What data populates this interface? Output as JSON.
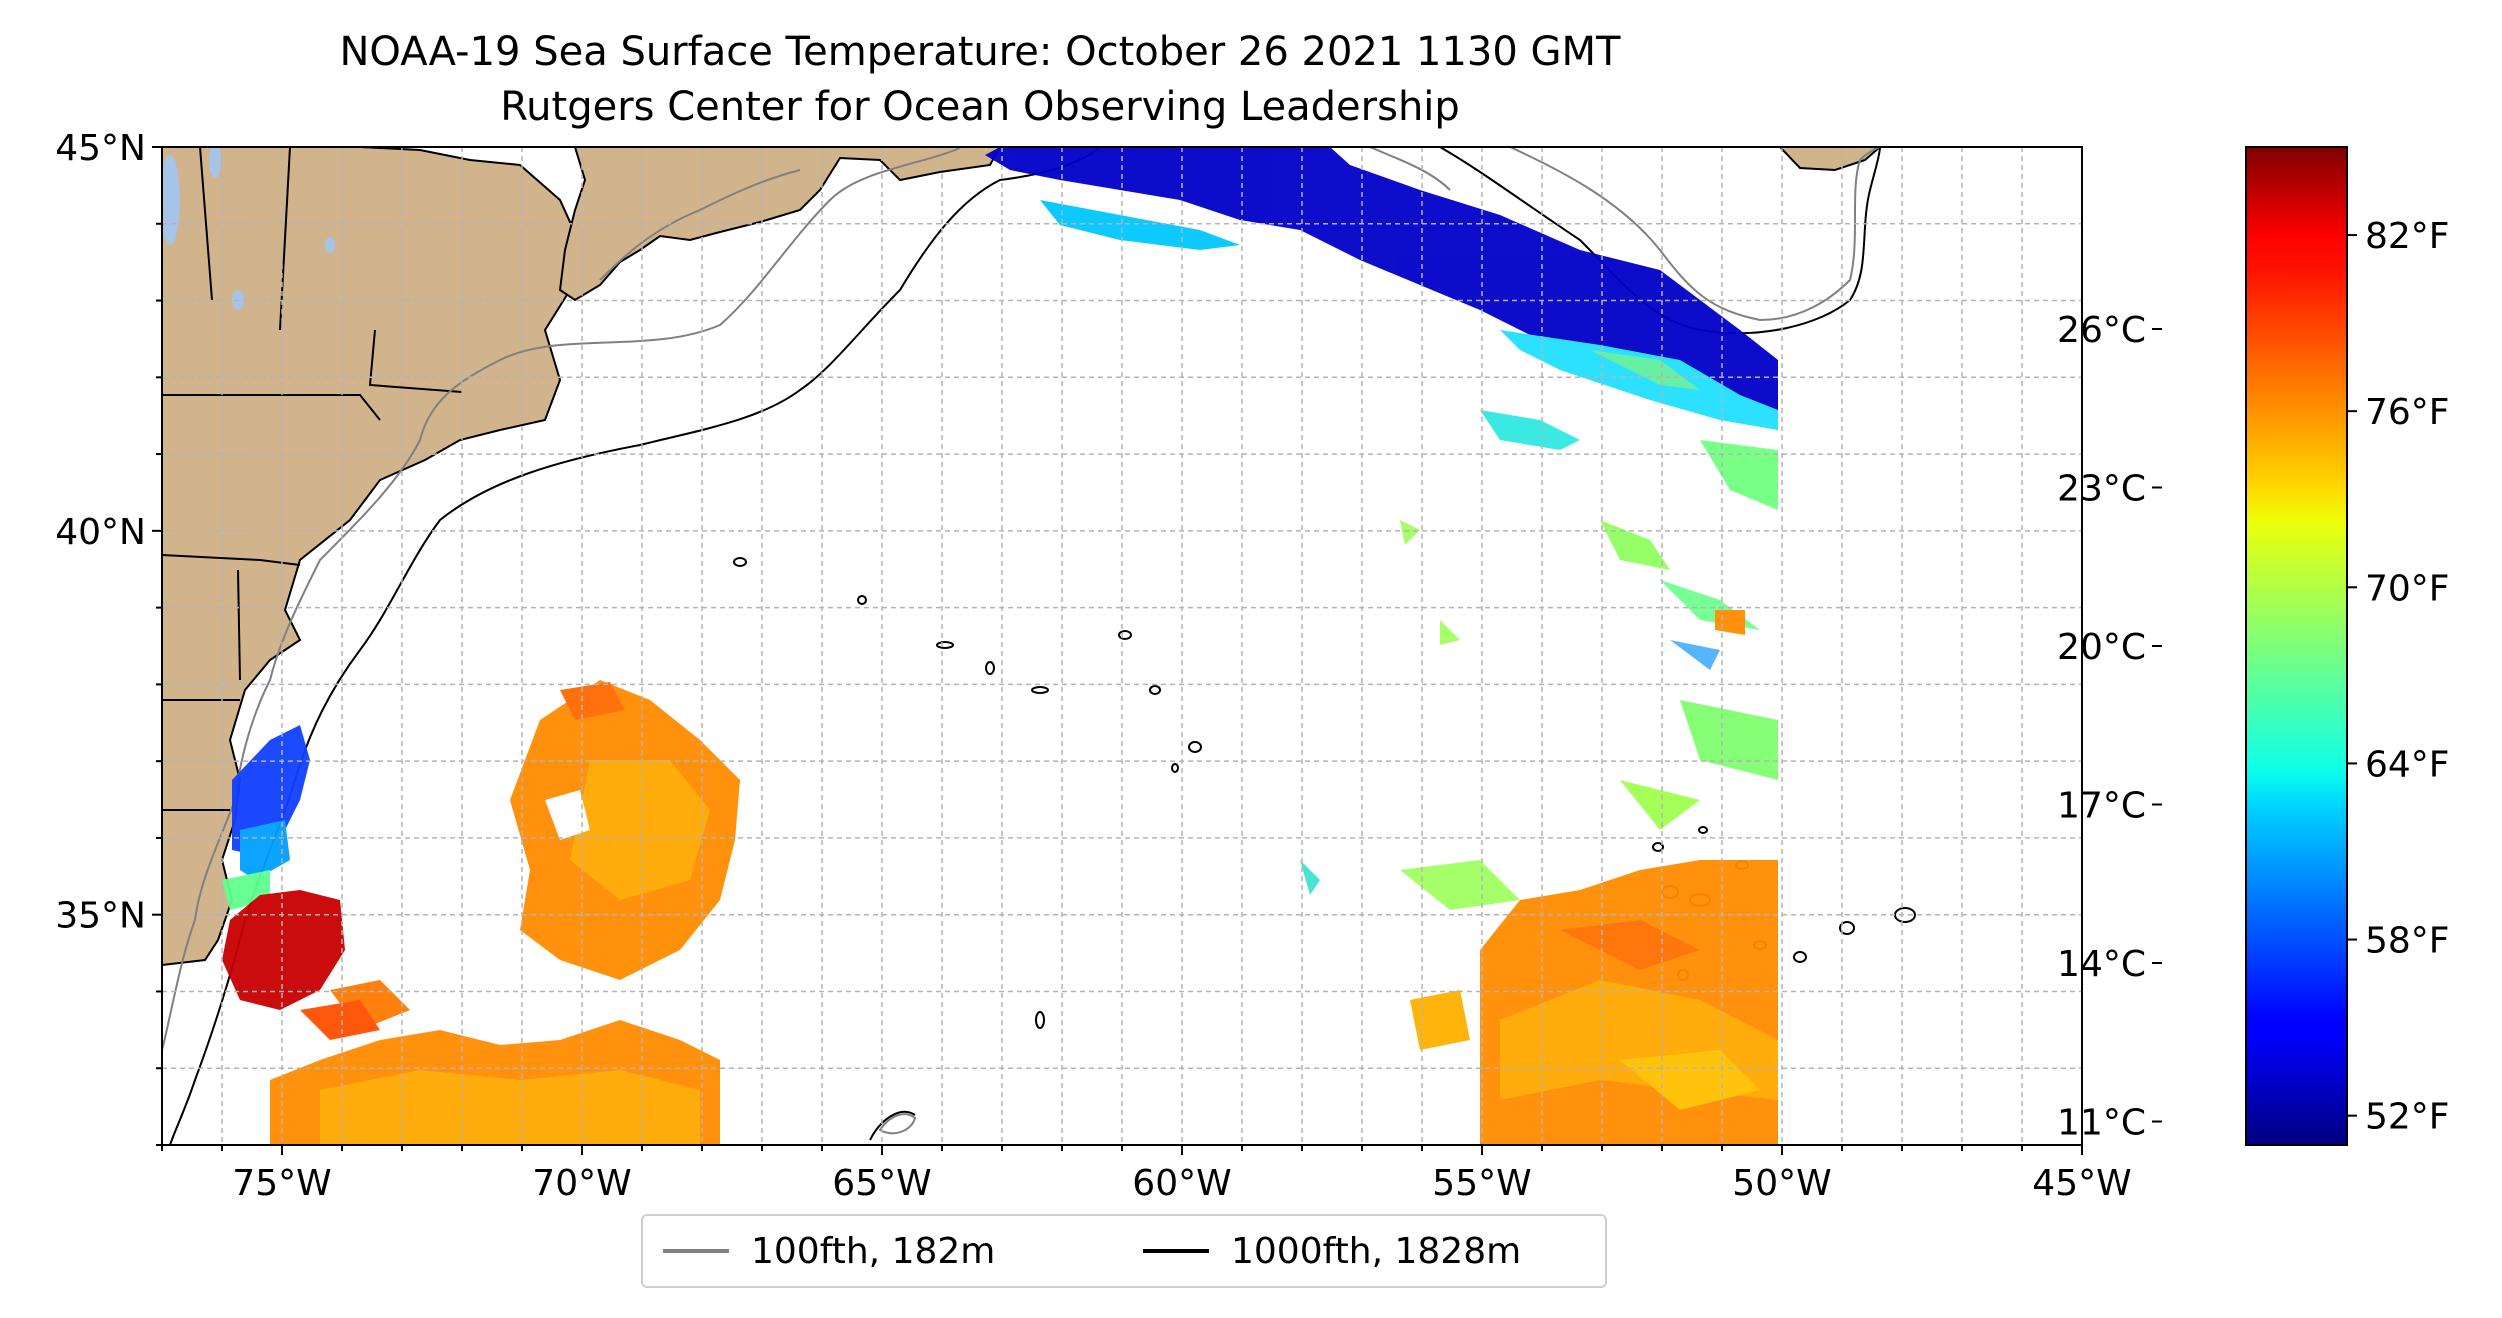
{
  "title": {
    "line1": "NOAA-19 Sea Surface Temperature: October 26 2021 1130 GMT",
    "line2": "Rutgers Center for Ocean Observing Leadership"
  },
  "map": {
    "lon_range": [
      -77,
      -45
    ],
    "lat_range": [
      32,
      45
    ],
    "lon_ticks": [
      {
        "value": -75,
        "label": "75°W"
      },
      {
        "value": -70,
        "label": "70°W"
      },
      {
        "value": -65,
        "label": "65°W"
      },
      {
        "value": -60,
        "label": "60°W"
      },
      {
        "value": -55,
        "label": "55°W"
      },
      {
        "value": -50,
        "label": "50°W"
      },
      {
        "value": -45,
        "label": "45°W"
      }
    ],
    "lat_ticks": [
      {
        "value": 45,
        "label": "45°N"
      },
      {
        "value": 40,
        "label": "40°N"
      },
      {
        "value": 35,
        "label": "35°N"
      }
    ],
    "grid": "dashed, 1° spacing",
    "colors": {
      "land": "#d2b48c",
      "lakes": "#a6c3e8",
      "ocean_no_data": "#ffffff",
      "grid": "#b4b4b4"
    }
  },
  "colorbar": {
    "colormap": "jet",
    "range_f": [
      51,
      85
    ],
    "celsius_ticks": [
      {
        "value": 11,
        "label": "11°C"
      },
      {
        "value": 14,
        "label": "14°C"
      },
      {
        "value": 17,
        "label": "17°C"
      },
      {
        "value": 20,
        "label": "20°C"
      },
      {
        "value": 23,
        "label": "23°C"
      },
      {
        "value": 26,
        "label": "26°C"
      }
    ],
    "fahrenheit_ticks": [
      {
        "value": 52,
        "label": "52°F"
      },
      {
        "value": 58,
        "label": "58°F"
      },
      {
        "value": 64,
        "label": "64°F"
      },
      {
        "value": 70,
        "label": "70°F"
      },
      {
        "value": 76,
        "label": "76°F"
      },
      {
        "value": 82,
        "label": "82°F"
      }
    ]
  },
  "legend": {
    "items": [
      {
        "label": "100fth, 182m",
        "color": "#808080"
      },
      {
        "label": "1000fth, 1828m",
        "color": "#000000"
      }
    ]
  }
}
